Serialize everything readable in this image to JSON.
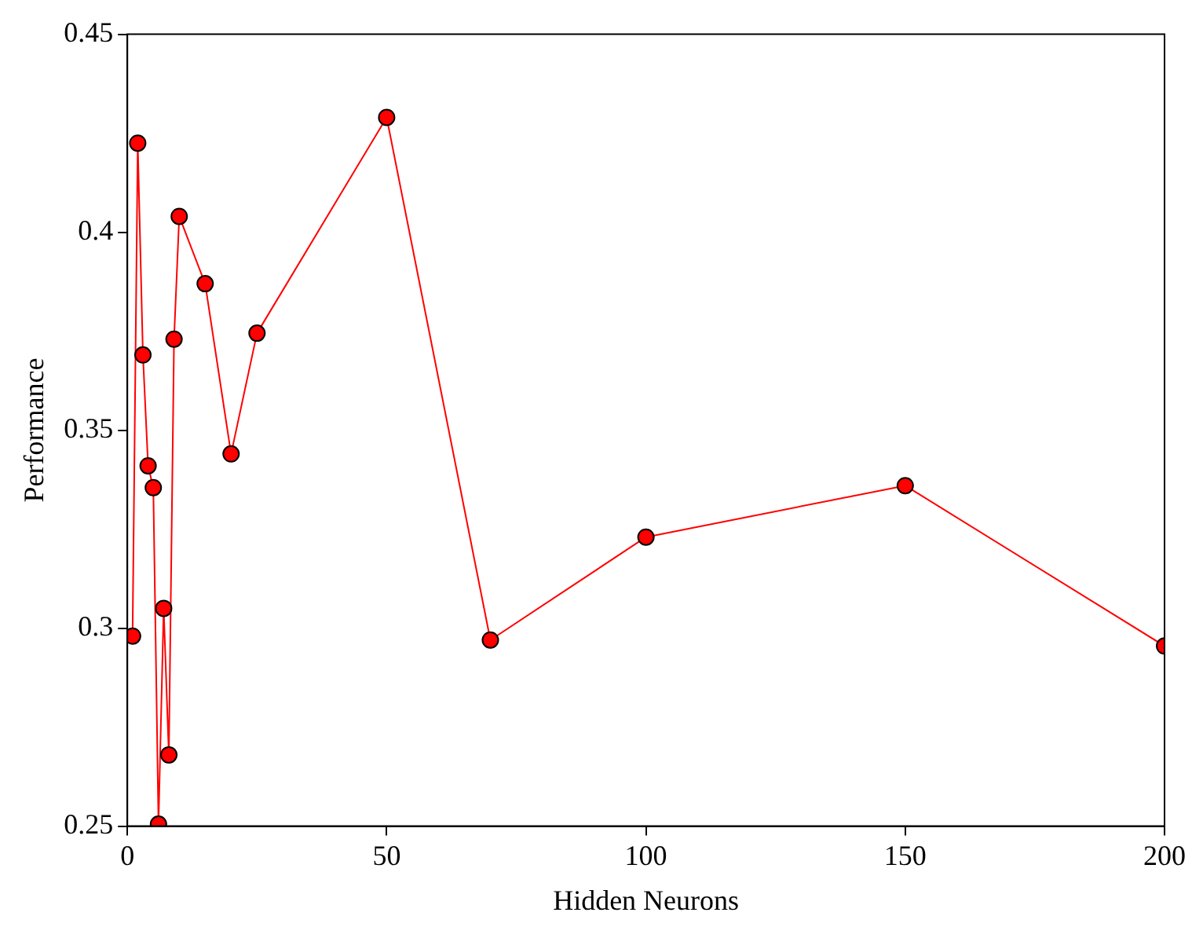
{
  "chart_data": {
    "type": "line",
    "xlabel": "Hidden Neurons",
    "ylabel": "Performance",
    "x": [
      1,
      2,
      3,
      4,
      5,
      6,
      7,
      8,
      9,
      10,
      15,
      20,
      25,
      50,
      70,
      100,
      150,
      200
    ],
    "series": [
      {
        "color": "#ff0000",
        "values": [
          0.298,
          0.4225,
          0.369,
          0.341,
          0.3355,
          0.2505,
          0.305,
          0.268,
          0.373,
          0.404,
          0.387,
          0.344,
          0.3745,
          0.429,
          0.297,
          0.323,
          0.336,
          0.2955
        ]
      }
    ],
    "xlim": [
      0,
      200
    ],
    "xticks": [
      0,
      50,
      100,
      150,
      200
    ],
    "ylim": [
      0.25,
      0.45
    ],
    "yticks": [
      0.25,
      0.3,
      0.35,
      0.4,
      0.45
    ],
    "grid": false,
    "legend": false,
    "marker": "circle",
    "line_style": "solid"
  }
}
